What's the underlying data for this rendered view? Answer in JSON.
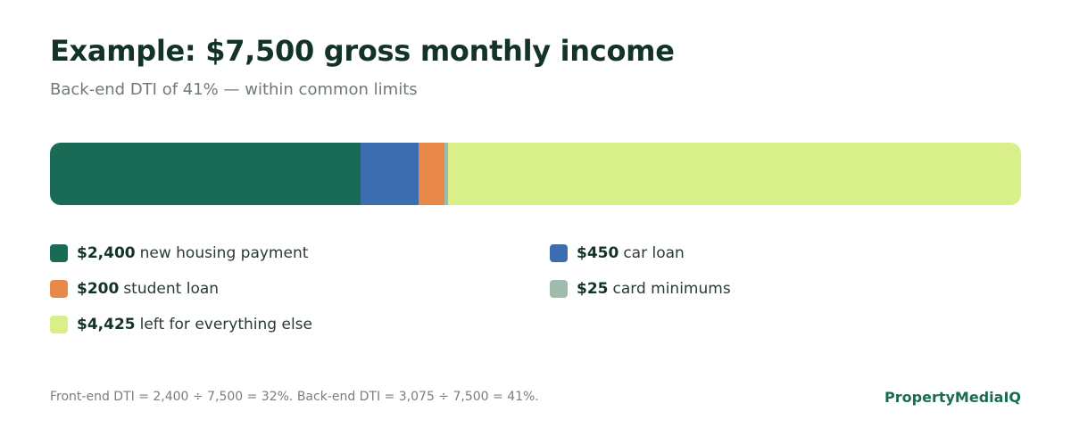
{
  "header": {
    "title": "Example: $7,500 gross monthly income",
    "subtitle": "Back-end DTI of 41% — within common limits"
  },
  "chart_data": {
    "type": "bar",
    "orientation": "horizontal-stacked",
    "total": 7500,
    "series": [
      {
        "amount": "$2,400",
        "label": "new housing payment",
        "value": 2400,
        "color": "#1a6b56"
      },
      {
        "amount": "$450",
        "label": "car loan",
        "value": 450,
        "color": "#3b6db0"
      },
      {
        "amount": "$200",
        "label": "student loan",
        "value": 200,
        "color": "#e8894a"
      },
      {
        "amount": "$25",
        "label": "card minimums",
        "value": 25,
        "color": "#9fbbab"
      },
      {
        "amount": "$4,425",
        "label": "left for everything else",
        "value": 4425,
        "color": "#d8ef8a"
      }
    ]
  },
  "footer": {
    "note": "Front-end DTI = 2,400 ÷ 7,500 = 32%. Back-end DTI = 3,075 ÷ 7,500 = 41%.",
    "brand": "PropertyMediaIQ"
  }
}
